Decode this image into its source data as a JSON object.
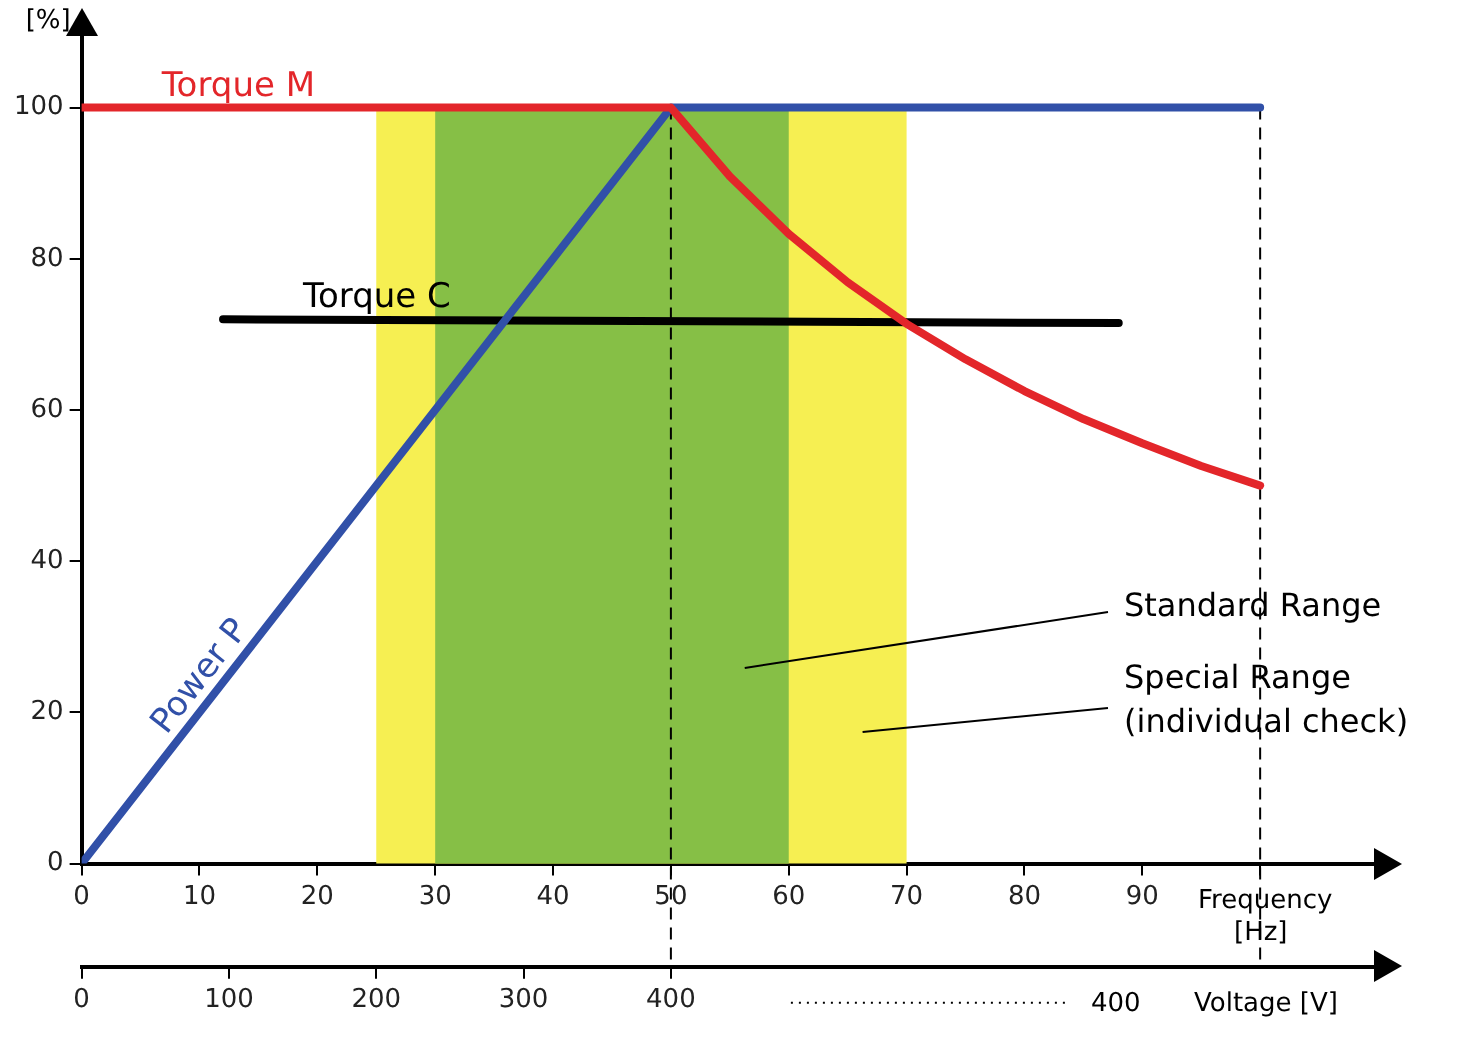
{
  "chart_data": {
    "type": "line",
    "ylabel": "[%]",
    "xlabel": "Frequency [Hz]",
    "x2label": "Voltage [V]",
    "xlim": [
      0,
      110
    ],
    "xticks": [
      0,
      10,
      20,
      30,
      40,
      50,
      60,
      70,
      80,
      90,
      {
        "value": 100,
        "label": null
      }
    ],
    "x2lim": [
      0,
      880
    ],
    "x2ticks": [
      0,
      100,
      200,
      300,
      400
    ],
    "ylim": [
      0,
      110
    ],
    "yticks": [
      0,
      20,
      40,
      60,
      80,
      100
    ],
    "grid": false,
    "legend": false,
    "marker": "none",
    "line_style": "solid",
    "series": [
      {
        "name": "Torque M",
        "color": "#e3262a",
        "x": [
          0,
          50,
          55,
          60,
          65,
          70,
          75,
          80,
          85,
          90,
          95,
          100
        ],
        "values": [
          100,
          100,
          90.9,
          83.3,
          76.9,
          71.4,
          66.7,
          62.5,
          58.8,
          55.6,
          52.6,
          50
        ]
      },
      {
        "name": "Power P",
        "color": "#3150a8",
        "x": [
          0,
          50,
          100
        ],
        "values": [
          0,
          100,
          100
        ]
      },
      {
        "name": "Torque C",
        "color": "#000000",
        "x": [
          12,
          88
        ],
        "values": [
          72,
          71.5
        ]
      }
    ],
    "bands": [
      {
        "axis": "x",
        "from": 25,
        "to": 70,
        "label": "Special Range\n(individual check)",
        "color": "#f6ef52"
      },
      {
        "axis": "x",
        "from": 30,
        "to": 60,
        "label": "Standard Range",
        "color": "#86bf46"
      }
    ],
    "ref_lines": [
      {
        "axis": "x",
        "value": 50,
        "line_style": "dashed",
        "color": "#000000"
      },
      {
        "axis": "x",
        "value": 100,
        "line_style": "dashed",
        "color": "#000000"
      }
    ],
    "annotations": [
      "400"
    ]
  }
}
